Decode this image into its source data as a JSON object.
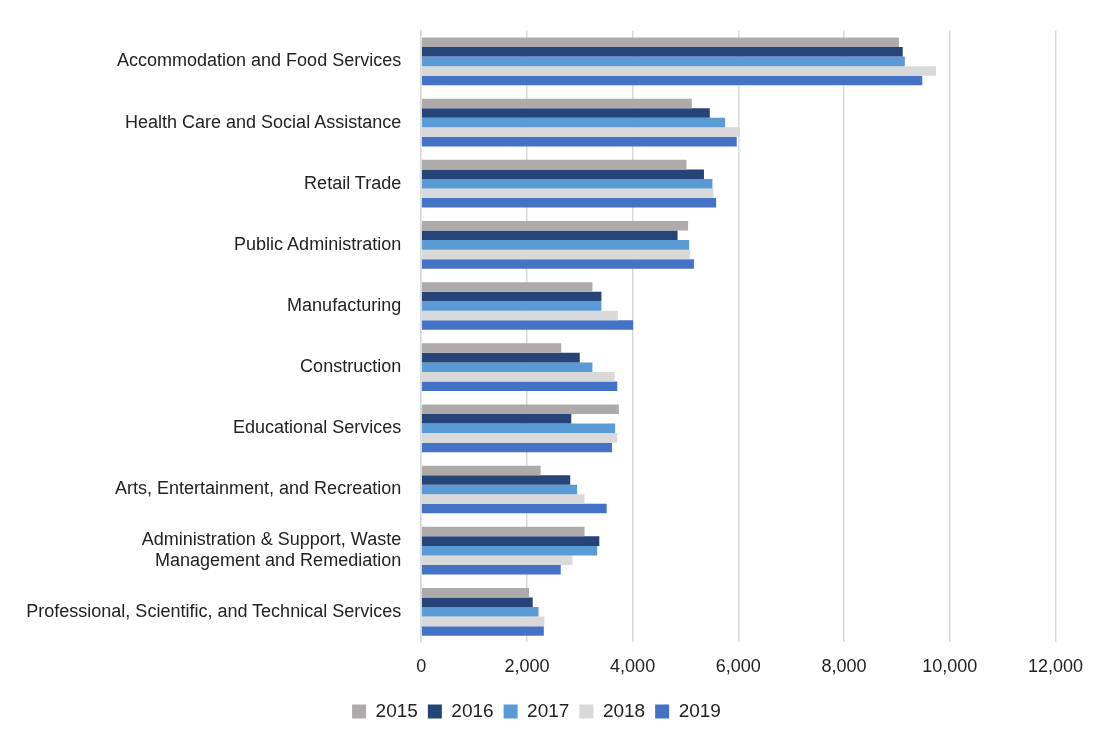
{
  "chart_data": {
    "type": "bar",
    "orientation": "horizontal",
    "categories": [
      "Accommodation and Food Services",
      "Health Care and Social Assistance",
      "Retail Trade",
      "Public Administration",
      "Manufacturing",
      "Construction",
      "Educational Services",
      "Arts, Entertainment, and Recreation",
      "Administration & Support, Waste Management and Remediation",
      "Professional, Scientific, and Technical Services"
    ],
    "series": [
      {
        "name": "2015",
        "color": "#aeaaaa",
        "values": [
          9040,
          5120,
          5020,
          5050,
          3240,
          2650,
          3740,
          2260,
          3090,
          2040
        ]
      },
      {
        "name": "2016",
        "color": "#264478",
        "values": [
          9110,
          5460,
          5350,
          4850,
          3410,
          3000,
          2840,
          2820,
          3370,
          2110
        ]
      },
      {
        "name": "2017",
        "color": "#5b9bd5",
        "values": [
          9150,
          5750,
          5510,
          5070,
          3410,
          3240,
          3670,
          2950,
          3330,
          2220
        ]
      },
      {
        "name": "2018",
        "color": "#d9d9d9",
        "values": [
          9740,
          6030,
          5530,
          5090,
          3720,
          3660,
          3710,
          3090,
          2860,
          2330
        ]
      },
      {
        "name": "2019",
        "color": "#4472c4",
        "values": [
          9480,
          5970,
          5580,
          5160,
          4010,
          3710,
          3610,
          3510,
          2640,
          2320
        ]
      }
    ],
    "xlim": [
      0,
      12000
    ],
    "xticks": [
      0,
      {
        "value": 2000,
        "label": "2,000"
      },
      {
        "value": 4000,
        "label": "4,000"
      },
      {
        "value": 6000,
        "label": "6,000"
      },
      {
        "value": 8000,
        "label": "8,000"
      },
      {
        "value": 10000,
        "label": "10,000"
      },
      {
        "value": 12000,
        "label": "12,000"
      }
    ],
    "grid": "x",
    "legend": "bottom"
  }
}
